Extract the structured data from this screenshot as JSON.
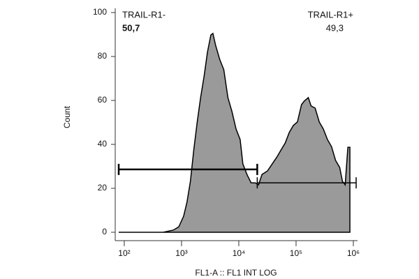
{
  "chart_data": {
    "type": "area",
    "x_scale": "log",
    "x_label": "FL1-A :: FL1 INT LOG",
    "y_label": "Count",
    "x": [
      80,
      478,
      720,
      896,
      1087,
      1245,
      1429,
      1637,
      1879,
      2154,
      2471,
      2833,
      3251,
      3532,
      3936,
      4642,
      5471,
      6454,
      7603,
      8954,
      10560,
      11780,
      13900,
      16370,
      19310,
      22130,
      25410,
      31620,
      38310,
      46420,
      54710,
      64540,
      76030,
      89540,
      105600,
      124500,
      139000,
      163700,
      182800,
      215400,
      254100,
      299300,
      353200,
      415900,
      489800,
      577800,
      645700,
      719800,
      803500,
      871000
    ],
    "series": [
      {
        "color": "#9a9a9a",
        "values": [
          0,
          0,
          1,
          2.5,
          7.3,
          13.7,
          23.2,
          37.5,
          50.2,
          61.3,
          70.8,
          81.9,
          89.8,
          90.5,
          85.1,
          78.7,
          74.0,
          61.3,
          54.9,
          47.0,
          42.2,
          31.1,
          26.3,
          22.5,
          22.5,
          21.6,
          26.3,
          27.9,
          31.1,
          34.3,
          37.5,
          40.6,
          45.4,
          48.6,
          50.2,
          58.1,
          59.7,
          61.3,
          57.5,
          56.5,
          50.2,
          47.0,
          42.2,
          39.0,
          32.7,
          29.5,
          23.2,
          21.6,
          38.7,
          38.7
        ]
      }
    ],
    "gates": [
      {
        "name": "TRAIL-R1-",
        "percent_label": "50,7",
        "x": [
          80,
          21000
        ],
        "y": 28.6
      },
      {
        "name": "TRAIL-R1+",
        "percent_label": "49,3",
        "x": [
          21000,
          1120000
        ],
        "y": 22.5
      }
    ],
    "xlim": [
      80,
      1120000
    ],
    "xticks": [
      {
        "value": 100,
        "label": "10²"
      },
      {
        "value": 1000,
        "label": "10³"
      },
      {
        "value": 10000,
        "label": "10⁴"
      },
      {
        "value": 100000,
        "label": "10⁵"
      },
      {
        "value": 1000000,
        "label": "10⁶"
      }
    ],
    "ylim": [
      0,
      100
    ],
    "yticks": [
      0,
      20,
      40,
      60,
      80,
      100
    ]
  }
}
